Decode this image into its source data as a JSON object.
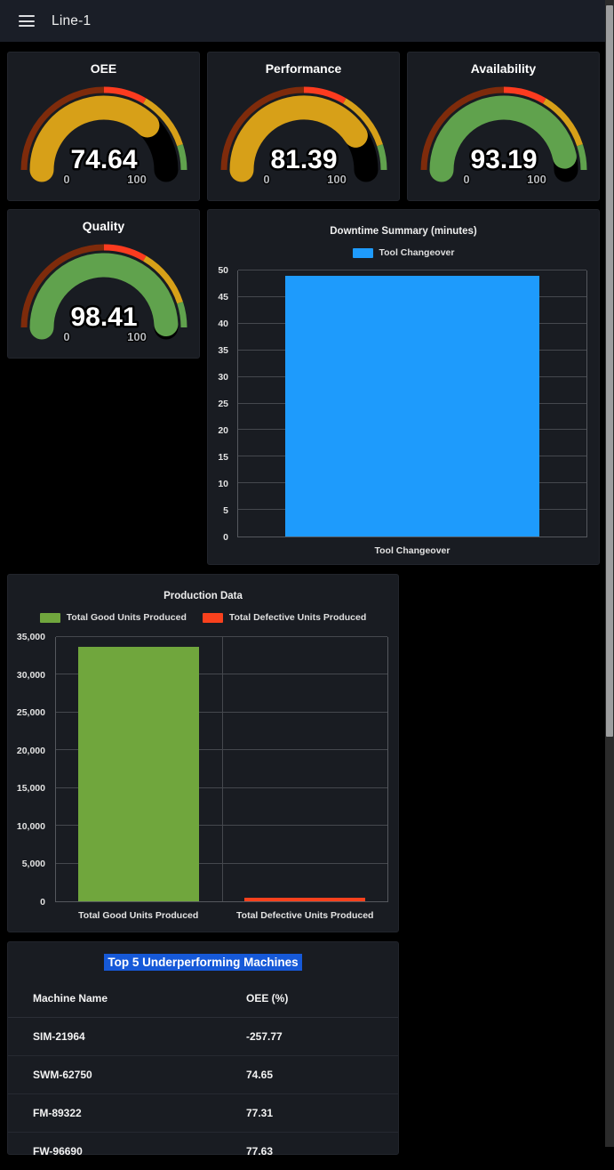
{
  "header": {
    "title": "Line-1"
  },
  "gauges": [
    {
      "title": "OEE",
      "value": 74.64,
      "display": "74.64",
      "min_label": "0",
      "max_label": "100",
      "bar_color": "#D7A018"
    },
    {
      "title": "Performance",
      "value": 81.39,
      "display": "81.39",
      "min_label": "0",
      "max_label": "100",
      "bar_color": "#D7A018"
    },
    {
      "title": "Availability",
      "value": 93.19,
      "display": "93.19",
      "min_label": "0",
      "max_label": "100",
      "bar_color": "#60A24D"
    },
    {
      "title": "Quality",
      "value": 98.41,
      "display": "98.41",
      "min_label": "0",
      "max_label": "100",
      "bar_color": "#60A24D"
    }
  ],
  "gauge_thresholds": [
    {
      "upto": 50,
      "color": "#7E2B0B"
    },
    {
      "upto": 67,
      "color": "#FC3B1F"
    },
    {
      "upto": 90,
      "color": "#D7A018"
    },
    {
      "upto": 100,
      "color": "#60A24D"
    }
  ],
  "chart_data": [
    {
      "id": "downtime",
      "type": "bar",
      "title": "Downtime Summary (minutes)",
      "legend": [
        {
          "label": "Tool Changeover",
          "color": "#1E9BFC"
        }
      ],
      "legend_position": "top",
      "categories": [
        "Tool Changeover"
      ],
      "values": [
        49
      ],
      "bar_colors": [
        "#1E9BFC"
      ],
      "xlabel": "",
      "ylabel": "",
      "ylim": [
        0,
        50
      ],
      "yticks": [
        0,
        5,
        10,
        15,
        20,
        25,
        30,
        35,
        40,
        45,
        50
      ],
      "ytick_labels": [
        "0",
        "5",
        "10",
        "15",
        "20",
        "25",
        "30",
        "35",
        "40",
        "45",
        "50"
      ],
      "grid": "on"
    },
    {
      "id": "production",
      "type": "bar",
      "title": "Production Data",
      "legend": [
        {
          "label": "Total Good Units Produced",
          "color": "#70A63D"
        },
        {
          "label": "Total Defective Units Produced",
          "color": "#F9411D"
        }
      ],
      "legend_position": "top",
      "categories": [
        "Total Good Units Produced",
        "Total Defective Units Produced"
      ],
      "values": [
        33700,
        500
      ],
      "bar_colors": [
        "#70A63D",
        "#F9411D"
      ],
      "xlabel": "",
      "ylabel": "",
      "ylim": [
        0,
        35000
      ],
      "yticks": [
        0,
        5000,
        10000,
        15000,
        20000,
        25000,
        30000,
        35000
      ],
      "ytick_labels": [
        "0",
        "5,000",
        "10,000",
        "15,000",
        "20,000",
        "25,000",
        "30,000",
        "35,000"
      ],
      "grid": "on"
    }
  ],
  "table": {
    "title": "Top 5 Underperforming Machines",
    "title_highlight_color": "#1659D8",
    "columns": [
      "Machine Name",
      "OEE (%)"
    ],
    "rows": [
      {
        "machine": "SIM-21964",
        "oee": "-257.77"
      },
      {
        "machine": "SWM-62750",
        "oee": "74.65"
      },
      {
        "machine": "FM-89322",
        "oee": "77.31"
      },
      {
        "machine": "FW-96690",
        "oee": "77.63"
      }
    ]
  }
}
